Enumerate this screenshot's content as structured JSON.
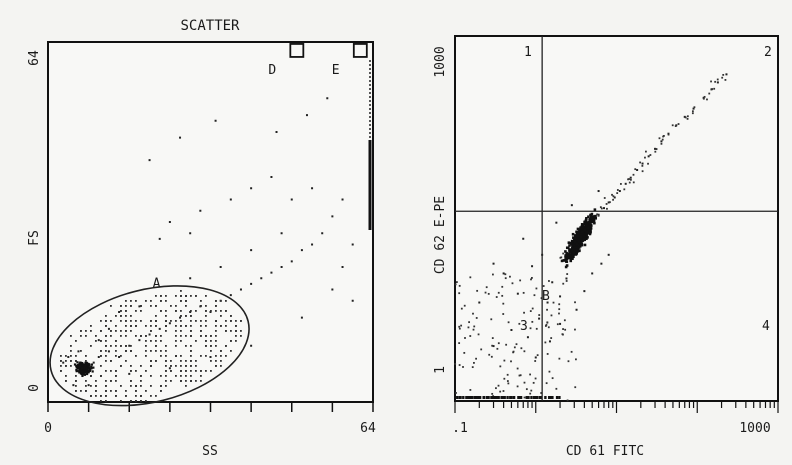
{
  "chart_data": [
    {
      "type": "scatter",
      "title": "SCATTER",
      "xlabel": "SS",
      "ylabel": "FS",
      "xlim": [
        0,
        64
      ],
      "ylim": [
        0,
        64
      ],
      "x_ticks": [
        "0",
        "64"
      ],
      "y_ticks": [
        "0",
        "64"
      ],
      "gates": [
        {
          "label": "A",
          "shape": "ellipse",
          "center": [
            20,
            10
          ],
          "semi_axes": [
            20,
            10
          ],
          "rotation_deg": 14
        },
        {
          "label": "D",
          "shape": "square",
          "center": [
            49,
            62.5
          ]
        },
        {
          "label": "E",
          "shape": "square",
          "center": [
            61.5,
            62.5
          ]
        }
      ],
      "dense_cluster": {
        "x": 7,
        "y": 6
      },
      "sparse_points": [
        [
          8,
          6
        ],
        [
          9,
          7
        ],
        [
          6,
          5.5
        ],
        [
          10,
          8
        ],
        [
          12,
          9
        ],
        [
          14,
          8
        ],
        [
          16,
          10
        ],
        [
          18,
          11
        ],
        [
          20,
          12
        ],
        [
          22,
          13
        ],
        [
          24,
          14
        ],
        [
          26,
          15
        ],
        [
          28,
          16
        ],
        [
          30,
          17
        ],
        [
          32,
          16
        ],
        [
          34,
          18
        ],
        [
          36,
          19
        ],
        [
          38,
          20
        ],
        [
          40,
          21
        ],
        [
          42,
          22
        ],
        [
          44,
          23
        ],
        [
          46,
          24
        ],
        [
          48,
          25
        ],
        [
          50,
          27
        ],
        [
          52,
          28
        ],
        [
          54,
          30
        ],
        [
          56,
          33
        ],
        [
          58,
          36
        ],
        [
          22,
          29
        ],
        [
          24,
          32
        ],
        [
          28,
          30
        ],
        [
          30,
          34
        ],
        [
          36,
          36
        ],
        [
          40,
          38
        ],
        [
          44,
          40
        ],
        [
          20,
          43
        ],
        [
          26,
          47
        ],
        [
          33,
          50
        ],
        [
          45,
          48
        ],
        [
          51,
          51
        ],
        [
          55,
          54
        ],
        [
          48,
          36
        ],
        [
          52,
          38
        ],
        [
          14,
          16
        ],
        [
          12,
          13
        ],
        [
          10,
          11
        ],
        [
          18,
          17
        ],
        [
          28,
          22
        ],
        [
          34,
          24
        ],
        [
          40,
          27
        ],
        [
          46,
          30
        ],
        [
          6,
          9
        ],
        [
          4,
          8
        ],
        [
          3,
          7
        ],
        [
          5,
          3
        ],
        [
          8,
          3
        ],
        [
          16,
          5
        ],
        [
          24,
          6
        ],
        [
          32,
          8
        ],
        [
          40,
          10
        ],
        [
          50,
          15
        ],
        [
          56,
          20
        ],
        [
          58,
          24
        ],
        [
          60,
          28
        ],
        [
          60,
          18
        ]
      ]
    },
    {
      "type": "scatter",
      "title": "",
      "xlabel": "CD 61 FITC",
      "ylabel": "CD 62 E-PE",
      "x_scale": "log",
      "y_scale": "log",
      "xlim": [
        0.1,
        1000
      ],
      "ylim": [
        0.1,
        1000
      ],
      "x_ticks": [
        ".1",
        "1000"
      ],
      "y_ticks": [
        "1",
        "1000"
      ],
      "quadrant_lines": {
        "x": 1.2,
        "y": 12
      },
      "quadrant_labels": [
        "1",
        "2",
        "3",
        "4"
      ],
      "marker_label": "B",
      "dense_cluster": {
        "x": 3.5,
        "y": 6
      },
      "diagonal_points": [
        [
          2.2,
          3.5
        ],
        [
          2.6,
          4.2
        ],
        [
          3,
          5
        ],
        [
          3.4,
          5.8
        ],
        [
          4,
          7
        ],
        [
          4.6,
          8
        ],
        [
          5.2,
          9.5
        ],
        [
          6,
          11
        ],
        [
          7,
          13
        ],
        [
          8,
          15
        ],
        [
          9.5,
          17
        ],
        [
          11,
          20
        ],
        [
          13,
          24
        ],
        [
          15,
          28
        ],
        [
          18,
          34
        ],
        [
          21,
          40
        ],
        [
          25,
          48
        ],
        [
          30,
          58
        ],
        [
          36,
          70
        ],
        [
          44,
          85
        ],
        [
          55,
          105
        ],
        [
          70,
          130
        ],
        [
          90,
          160
        ],
        [
          120,
          210
        ],
        [
          150,
          260
        ],
        [
          180,
          310
        ],
        [
          230,
          380
        ]
      ],
      "sparse_points": [
        [
          0.3,
          0.4
        ],
        [
          0.5,
          0.6
        ],
        [
          0.8,
          0.5
        ],
        [
          1.1,
          0.8
        ],
        [
          0.6,
          1.5
        ],
        [
          0.4,
          2.5
        ],
        [
          0.9,
          3
        ],
        [
          1.4,
          1.2
        ],
        [
          1.6,
          2
        ],
        [
          2,
          1.4
        ],
        [
          2.4,
          2.2
        ],
        [
          1.2,
          4
        ],
        [
          0.7,
          6
        ],
        [
          2,
          0.7
        ],
        [
          3.2,
          1
        ],
        [
          4,
          1.6
        ],
        [
          5,
          2.5
        ],
        [
          6.5,
          3.2
        ],
        [
          8,
          4
        ],
        [
          1.8,
          9
        ],
        [
          2.8,
          14
        ],
        [
          6,
          20
        ],
        [
          0.2,
          1.2
        ],
        [
          0.3,
          3.2
        ],
        [
          1,
          0.3
        ],
        [
          1.5,
          0.45
        ]
      ]
    }
  ]
}
